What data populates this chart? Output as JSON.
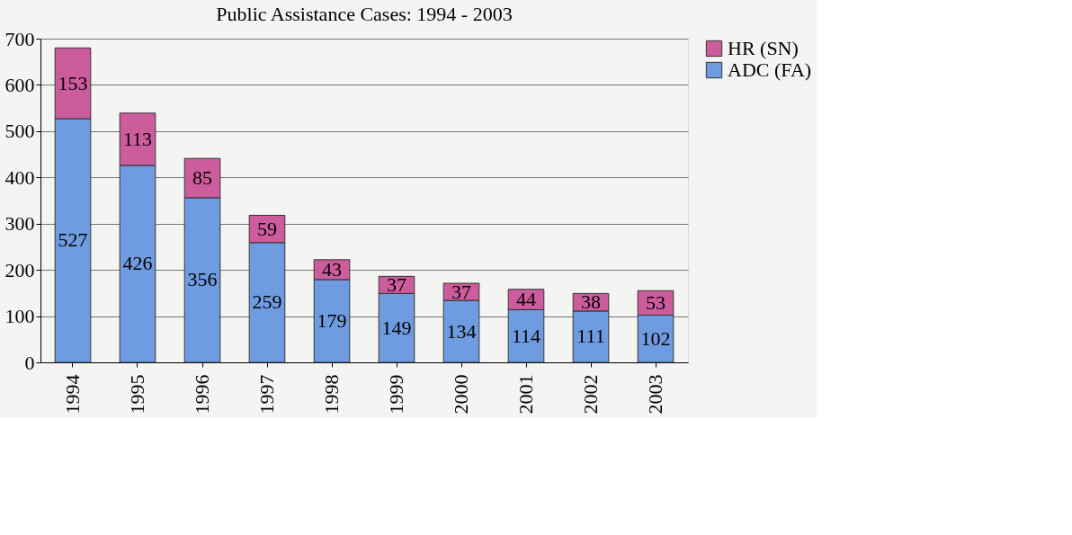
{
  "chart_data": {
    "type": "bar",
    "title": "Public Assistance Cases: 1994 - 2003",
    "categories": [
      "1994",
      "1995",
      "1996",
      "1997",
      "1998",
      "1999",
      "2000",
      "2001",
      "2002",
      "2003"
    ],
    "series": [
      {
        "name": "ADC (FA)",
        "color": "#6f9be0",
        "values": [
          527,
          426,
          356,
          259,
          179,
          149,
          134,
          114,
          111,
          102
        ]
      },
      {
        "name": "HR (SN)",
        "color": "#cc5c9c",
        "values": [
          153,
          113,
          85,
          59,
          43,
          37,
          37,
          44,
          38,
          53
        ]
      }
    ],
    "stacked": true,
    "ylim": [
      0,
      700
    ],
    "yticks": [
      0,
      100,
      200,
      300,
      400,
      500,
      600,
      700
    ],
    "grid": "y",
    "legend": "right",
    "data_labels": true
  }
}
